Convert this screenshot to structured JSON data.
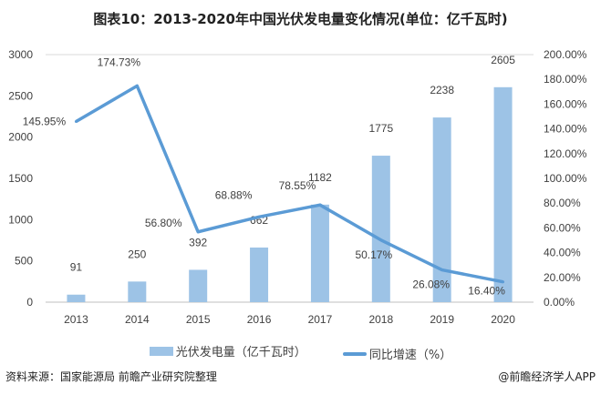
{
  "chart_data": {
    "type": "bar+line",
    "title": "图表10：2013-2020年中国光伏发电量变化情况(单位：亿千瓦时)",
    "categories": [
      "2013",
      "2014",
      "2015",
      "2016",
      "2017",
      "2018",
      "2019",
      "2020"
    ],
    "series": [
      {
        "name": "光伏发电量（亿千瓦时）",
        "type": "bar",
        "axis": "left",
        "color": "#9dc3e6",
        "values": [
          91,
          250,
          392,
          662,
          1182,
          1775,
          2238,
          2605
        ],
        "labels": [
          "91",
          "250",
          "392",
          "662",
          "1182",
          "1775",
          "2238",
          "2605"
        ]
      },
      {
        "name": "同比增速（%）",
        "type": "line",
        "axis": "right",
        "color": "#5b9bd5",
        "values": [
          145.95,
          174.73,
          56.8,
          68.88,
          78.55,
          50.17,
          26.08,
          16.4
        ],
        "labels": [
          "145.95%",
          "174.73%",
          "56.80%",
          "68.88%",
          "78.55%",
          "50.17%",
          "26.08%",
          "16.40%"
        ]
      }
    ],
    "y_left": {
      "range": [
        0,
        3000
      ],
      "ticks": [
        "0",
        "500",
        "1000",
        "1500",
        "2000",
        "2500",
        "3000"
      ]
    },
    "y_right": {
      "range": [
        0,
        200
      ],
      "ticks": [
        "0.00%",
        "20.00%",
        "40.00%",
        "60.00%",
        "80.00%",
        "100.00%",
        "120.00%",
        "140.00%",
        "160.00%",
        "180.00%",
        "200.00%"
      ]
    },
    "grid": "top line only",
    "legend": "bottom"
  },
  "footer": {
    "source": "资料来源：国家能源局 前瞻产业研究院整理",
    "credit": "@前瞻经济学人APP"
  }
}
